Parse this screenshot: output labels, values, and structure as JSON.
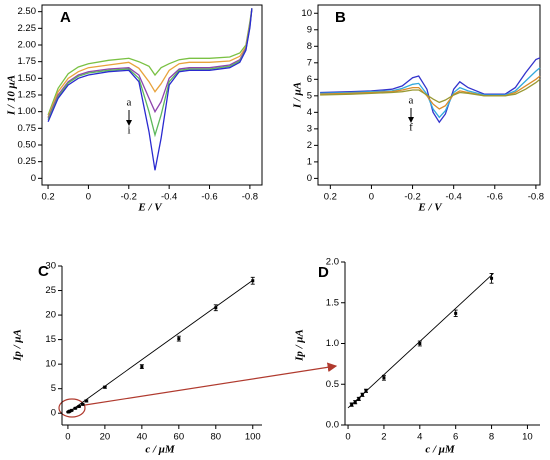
{
  "chart_data": [
    {
      "type": "line",
      "title": "A",
      "x_label": "E / V",
      "y_label": "I / 10 μA",
      "annotations": [
        "a",
        "i"
      ],
      "x": [
        0.2,
        0.15,
        0.1,
        0.05,
        0,
        -0.1,
        -0.2,
        -0.25,
        -0.3,
        -0.33,
        -0.36,
        -0.4,
        -0.45,
        -0.5,
        -0.6,
        -0.7,
        -0.75,
        -0.78,
        -0.8,
        -0.81
      ],
      "series": [
        {
          "color": "#7ac143",
          "values": [
            0.95,
            1.35,
            1.57,
            1.67,
            1.72,
            1.77,
            1.8,
            1.75,
            1.68,
            1.55,
            1.66,
            1.72,
            1.78,
            1.8,
            1.8,
            1.82,
            1.88,
            2.0,
            2.35,
            2.55
          ]
        },
        {
          "color": "#e8a33c",
          "values": [
            0.92,
            1.3,
            1.5,
            1.6,
            1.66,
            1.7,
            1.74,
            1.65,
            1.45,
            1.3,
            1.42,
            1.62,
            1.72,
            1.74,
            1.74,
            1.76,
            1.83,
            1.97,
            2.32,
            2.55
          ]
        },
        {
          "color": "#8e44ad",
          "values": [
            0.9,
            1.25,
            1.45,
            1.55,
            1.6,
            1.64,
            1.66,
            1.55,
            1.2,
            1.0,
            1.15,
            1.5,
            1.64,
            1.66,
            1.66,
            1.7,
            1.78,
            1.95,
            2.3,
            2.55
          ]
        },
        {
          "color": "#5cb85c",
          "values": [
            0.88,
            1.22,
            1.43,
            1.53,
            1.58,
            1.62,
            1.64,
            1.5,
            1.0,
            0.65,
            0.95,
            1.45,
            1.62,
            1.64,
            1.64,
            1.68,
            1.76,
            1.93,
            2.28,
            2.55
          ]
        },
        {
          "color": "#2a2ad0",
          "values": [
            0.85,
            1.2,
            1.4,
            1.5,
            1.55,
            1.6,
            1.62,
            1.45,
            0.7,
            0.12,
            0.6,
            1.4,
            1.6,
            1.62,
            1.62,
            1.66,
            1.74,
            1.92,
            2.26,
            2.55
          ]
        }
      ],
      "xlim": [
        0.23,
        -0.86
      ],
      "xticks": [
        0.2,
        0,
        -0.2,
        -0.4,
        -0.6,
        -0.8
      ],
      "ylim": [
        -0.1,
        2.6
      ],
      "yticks": [
        0,
        0.25,
        {
          "value": 0.5,
          "label": "0.50"
        },
        0.75,
        {
          "value": 1,
          "label": "1.00"
        },
        1.25,
        {
          "value": 1.5,
          "label": "1.50"
        },
        1.75,
        {
          "value": 2,
          "label": "2.00"
        },
        2.25,
        {
          "value": 2.5,
          "label": "2.50"
        }
      ]
    },
    {
      "type": "line",
      "title": "B",
      "x_label": "E / V",
      "y_label": "I / μA",
      "annotations": [
        "a",
        "f"
      ],
      "x": [
        0.25,
        0.1,
        0,
        -0.1,
        -0.15,
        -0.2,
        -0.23,
        -0.27,
        -0.3,
        -0.33,
        -0.36,
        -0.4,
        -0.43,
        -0.47,
        -0.55,
        -0.65,
        -0.7,
        -0.75,
        -0.8,
        -0.82
      ],
      "series": [
        {
          "color": "#3333cc",
          "values": [
            5.2,
            5.25,
            5.3,
            5.4,
            5.6,
            6.1,
            6.2,
            5.4,
            4.0,
            3.4,
            3.9,
            5.4,
            5.85,
            5.5,
            5.1,
            5.1,
            5.5,
            6.4,
            7.2,
            7.3
          ]
        },
        {
          "color": "#33aadd",
          "values": [
            5.15,
            5.2,
            5.25,
            5.3,
            5.45,
            5.7,
            5.75,
            5.1,
            4.2,
            3.7,
            4.1,
            5.2,
            5.5,
            5.3,
            5.05,
            5.05,
            5.3,
            5.9,
            6.5,
            6.7
          ]
        },
        {
          "color": "#d98c2b",
          "values": [
            5.1,
            5.15,
            5.2,
            5.25,
            5.35,
            5.5,
            5.5,
            5.0,
            4.5,
            4.2,
            4.4,
            5.1,
            5.3,
            5.2,
            5.0,
            5.0,
            5.2,
            5.6,
            6.0,
            6.2
          ]
        },
        {
          "color": "#999933",
          "values": [
            5.05,
            5.1,
            5.15,
            5.2,
            5.25,
            5.35,
            5.35,
            5.05,
            4.8,
            4.6,
            4.75,
            5.05,
            5.2,
            5.15,
            5.0,
            5.0,
            5.1,
            5.4,
            5.8,
            6.0
          ]
        }
      ],
      "xlim": [
        0.26,
        -0.82
      ],
      "xticks": [
        0.2,
        0,
        -0.2,
        -0.4,
        -0.6,
        -0.8
      ],
      "ylim": [
        -0.4,
        10.5
      ],
      "yticks": [
        0,
        1,
        2,
        3,
        4,
        5,
        6,
        7,
        8,
        9,
        10
      ]
    },
    {
      "type": "scatter",
      "title": "C",
      "x_label": "c / μM",
      "y_label": "Ip / μA",
      "x": [
        0.2,
        0.6,
        1,
        2,
        4,
        6,
        8,
        10,
        20,
        40,
        60,
        80,
        100
      ],
      "values": [
        0.25,
        0.32,
        0.42,
        0.58,
        1.0,
        1.37,
        1.8,
        2.5,
        5.3,
        9.5,
        15.2,
        21.5,
        27.0
      ],
      "errors": [
        0.1,
        0.1,
        0.1,
        0.1,
        0.1,
        0.1,
        0.1,
        0.2,
        0.2,
        0.4,
        0.5,
        0.6,
        0.7
      ],
      "fit": {
        "x": [
          0,
          100
        ],
        "values": [
          0.1,
          27.1
        ]
      },
      "xlim": [
        -3.2,
        105
      ],
      "xticks": [
        0,
        20,
        40,
        60,
        80,
        100
      ],
      "ylim": [
        -2.4,
        30
      ],
      "yticks": [
        0,
        5,
        10,
        15,
        20,
        25,
        30
      ]
    },
    {
      "type": "scatter",
      "title": "D",
      "x_label": "c / μM",
      "y_label": "Ip / μA",
      "x": [
        0.2,
        0.4,
        0.6,
        0.8,
        1,
        2,
        4,
        6,
        8
      ],
      "values": [
        0.25,
        0.28,
        0.32,
        0.37,
        0.42,
        0.58,
        1.0,
        1.37,
        1.8
      ],
      "errors": [
        0.02,
        0.02,
        0.02,
        0.02,
        0.02,
        0.03,
        0.03,
        0.04,
        0.06
      ],
      "fit": {
        "x": [
          0,
          8.1
        ],
        "values": [
          0.21,
          1.86
        ]
      },
      "xlim": [
        -0.17,
        10.7
      ],
      "xticks": [
        0,
        2,
        4,
        6,
        8,
        10
      ],
      "ylim": [
        0,
        2.0
      ],
      "yticks": [
        {
          "value": 0,
          "label": "0.0"
        },
        0.5,
        {
          "value": 1,
          "label": "1.0"
        },
        1.5,
        {
          "value": 2,
          "label": "2.0"
        }
      ]
    }
  ]
}
